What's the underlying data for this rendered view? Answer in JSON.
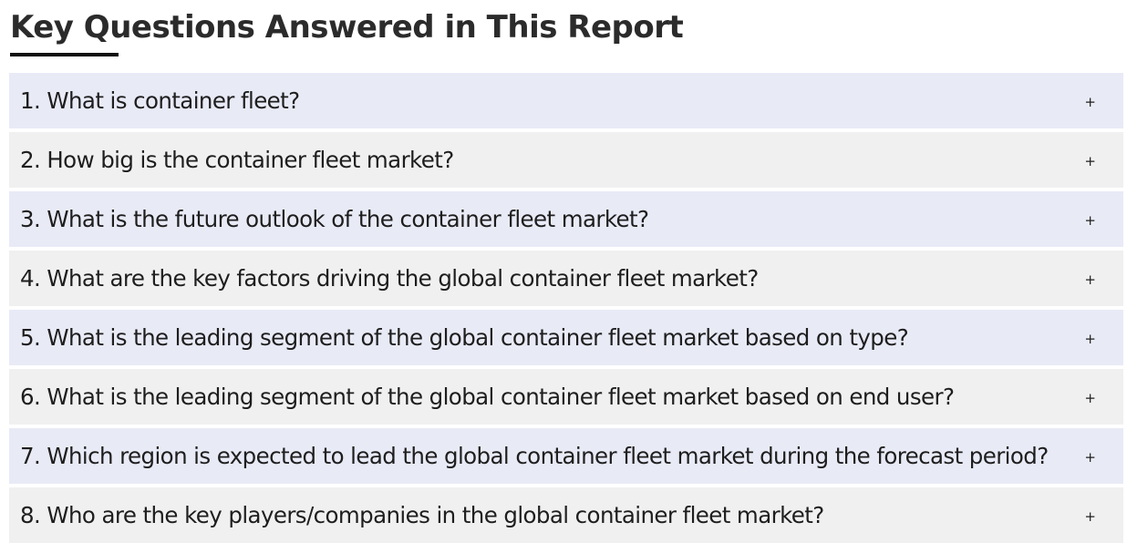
{
  "section": {
    "title": "Key Questions Answered in This Report"
  },
  "faq": {
    "toggle_icon": "plus-icon",
    "toggle_glyph": "+",
    "items": [
      {
        "question": "1. What is container fleet?"
      },
      {
        "question": "2. How big is the container fleet market?"
      },
      {
        "question": "3. What is the future outlook of the container fleet market?"
      },
      {
        "question": "4. What are the key factors driving the global container fleet market?"
      },
      {
        "question": "5. What is the leading segment of the global container fleet market based on type?"
      },
      {
        "question": "6. What is the leading segment of the global container fleet market based on end user?"
      },
      {
        "question": "7. Which region is expected to lead the global container fleet market during the forecast period?"
      },
      {
        "question": "8. Who are the key players/companies in the global container fleet market?"
      }
    ]
  },
  "colors": {
    "row_highlight": "#e8eaf6",
    "row_default": "#f0f0f0",
    "heading_text": "#2b2b2b",
    "underline": "#111111"
  }
}
